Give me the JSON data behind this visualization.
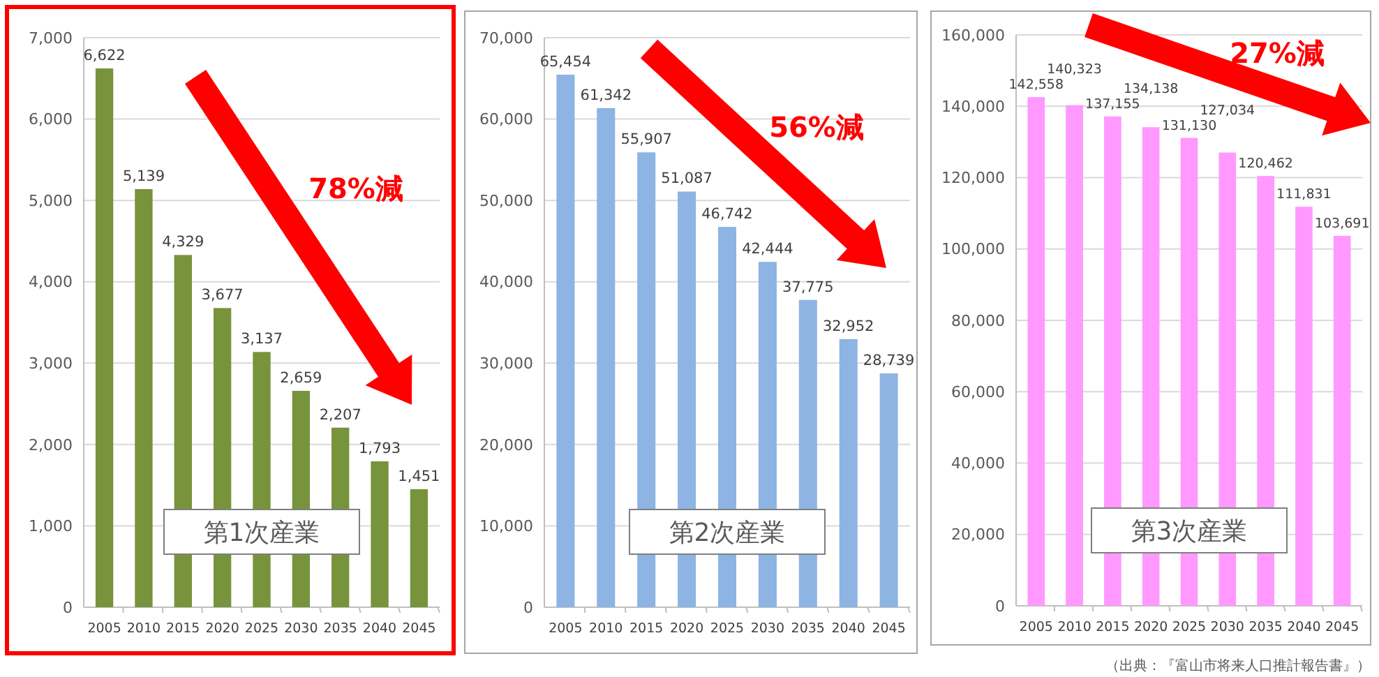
{
  "chart_data": [
    {
      "type": "bar",
      "title": "第1次産業",
      "categories": [
        "2005",
        "2010",
        "2015",
        "2020",
        "2025",
        "2030",
        "2035",
        "2040",
        "2045"
      ],
      "values": [
        6622,
        5139,
        4329,
        3677,
        3137,
        2659,
        2207,
        1793,
        1451
      ],
      "value_labels": [
        "6,622",
        "5,139",
        "4,329",
        "3,677",
        "3,137",
        "2,659",
        "2,207",
        "1,793",
        "1,451"
      ],
      "color": "#77933c",
      "ylim": [
        0,
        7000
      ],
      "yticks": [
        {
          "value": 0,
          "label": "0"
        },
        {
          "value": 1000,
          "label": "1,000"
        },
        {
          "value": 2000,
          "label": "2,000"
        },
        {
          "value": 3000,
          "label": "3,000"
        },
        {
          "value": 4000,
          "label": "4,000"
        },
        {
          "value": 5000,
          "label": "5,000"
        },
        {
          "value": 6000,
          "label": "6,000"
        },
        {
          "value": 7000,
          "label": "7,000"
        }
      ],
      "grid": "y",
      "annotations": [
        "78%減"
      ]
    },
    {
      "type": "bar",
      "title": "第2次産業",
      "categories": [
        "2005",
        "2010",
        "2015",
        "2020",
        "2025",
        "2030",
        "2035",
        "2040",
        "2045"
      ],
      "values": [
        65454,
        61342,
        55907,
        51087,
        46742,
        42444,
        37775,
        32952,
        28739
      ],
      "value_labels": [
        "65,454",
        "61,342",
        "55,907",
        "51,087",
        "46,742",
        "42,444",
        "37,775",
        "32,952",
        "28,739"
      ],
      "color": "#8db4e2",
      "ylim": [
        0,
        70000
      ],
      "yticks": [
        {
          "value": 0,
          "label": "0"
        },
        {
          "value": 10000,
          "label": "10,000"
        },
        {
          "value": 20000,
          "label": "20,000"
        },
        {
          "value": 30000,
          "label": "30,000"
        },
        {
          "value": 40000,
          "label": "40,000"
        },
        {
          "value": 50000,
          "label": "50,000"
        },
        {
          "value": 60000,
          "label": "60,000"
        },
        {
          "value": 70000,
          "label": "70,000"
        }
      ],
      "grid": "y",
      "annotations": [
        "56%減"
      ]
    },
    {
      "type": "bar",
      "title": "第3次産業",
      "categories": [
        "2005",
        "2010",
        "2015",
        "2020",
        "2025",
        "2030",
        "2035",
        "2040",
        "2045"
      ],
      "values": [
        142558,
        140323,
        137155,
        134138,
        131130,
        127034,
        120462,
        111831,
        103691
      ],
      "value_labels": [
        "142,558",
        "140,323",
        "137,155",
        "134,138",
        "131,130",
        "127,034",
        "120,462",
        "111,831",
        "103,691"
      ],
      "color": "#ff99ff",
      "ylim": [
        0,
        160000
      ],
      "yticks": [
        {
          "value": 0,
          "label": "0"
        },
        {
          "value": 20000,
          "label": "20,000"
        },
        {
          "value": 40000,
          "label": "40,000"
        },
        {
          "value": 60000,
          "label": "60,000"
        },
        {
          "value": 80000,
          "label": "80,000"
        },
        {
          "value": 100000,
          "label": "100,000"
        },
        {
          "value": 120000,
          "label": "120,000"
        },
        {
          "value": 140000,
          "label": "140,000"
        },
        {
          "value": 160000,
          "label": "160,000"
        }
      ],
      "grid": "y",
      "annotations": [
        "27%減",
        "（出典：『富山市将来人口推計報告書』）"
      ]
    }
  ]
}
